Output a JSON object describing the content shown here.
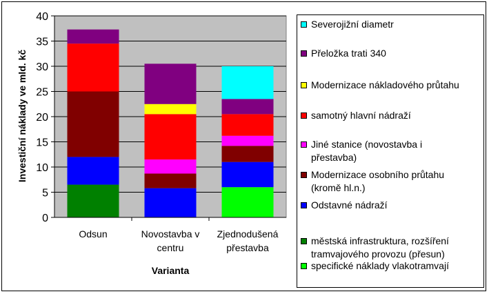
{
  "chart_data": {
    "type": "bar",
    "stacked": true,
    "title": "",
    "xlabel": "Varianta",
    "ylabel": "Investiční náklady ve mld. kč",
    "ylim": [
      0,
      40
    ],
    "yticks": [
      0,
      5,
      10,
      15,
      20,
      25,
      30,
      35,
      40
    ],
    "grid": true,
    "legend_position": "right",
    "categories": [
      "Odsun",
      "Novostavba v centru",
      "Zjednodušená přestavba"
    ],
    "category_lines": [
      [
        "Odsun"
      ],
      [
        "Novostavba v",
        "centru"
      ],
      [
        "Zjednodušená",
        "přestavba"
      ]
    ],
    "series": [
      {
        "name": "specifické náklady vlakotramvají",
        "legend_lines": [
          "specifické náklady vlakotramvají"
        ],
        "color": "#00ff00",
        "values": [
          0,
          0,
          6
        ]
      },
      {
        "name": "městská infrastruktura, rozšíření tramvajového provozu (přesun)",
        "legend_lines": [
          "městská infrastruktura, rozšíření",
          "tramvajového provozu (přesun)"
        ],
        "color": "#008000",
        "values": [
          6.5,
          0,
          0
        ]
      },
      {
        "name": "Odstavné nádraží",
        "legend_lines": [
          "Odstavné nádraží"
        ],
        "color": "#0000ff",
        "values": [
          5.5,
          5.8,
          5
        ]
      },
      {
        "name": "Modernizace osobního průtahu (kromě hl.n.)",
        "legend_lines": [
          "Modernizace osobního průtahu",
          "(kromě hl.n.)"
        ],
        "color": "#800000",
        "values": [
          13,
          2.9,
          3.2
        ]
      },
      {
        "name": "Jiné stanice (novostavba i přestavba)",
        "legend_lines": [
          "Jiné stanice (novostavba i",
          "přestavba)"
        ],
        "color": "#ff00ff",
        "values": [
          0,
          2.8,
          2
        ]
      },
      {
        "name": "samotný hlavní nádraží",
        "legend_lines": [
          "samotný hlavní nádraží"
        ],
        "color": "#ff0000",
        "values": [
          9.5,
          9,
          4.3
        ]
      },
      {
        "name": "Modernizace nákladového průtahu",
        "legend_lines": [
          "Modernizace nákladového průtahu"
        ],
        "color": "#ffff00",
        "values": [
          0,
          2,
          0
        ]
      },
      {
        "name": "Přeložka trati 340",
        "legend_lines": [
          "Přeložka trati 340"
        ],
        "color": "#800080",
        "values": [
          2.8,
          8,
          3
        ]
      },
      {
        "name": "Severojižní diametr",
        "legend_lines": [
          "Severojižní diametr"
        ],
        "color": "#00ffff",
        "values": [
          0,
          0,
          6.5
        ]
      }
    ]
  }
}
